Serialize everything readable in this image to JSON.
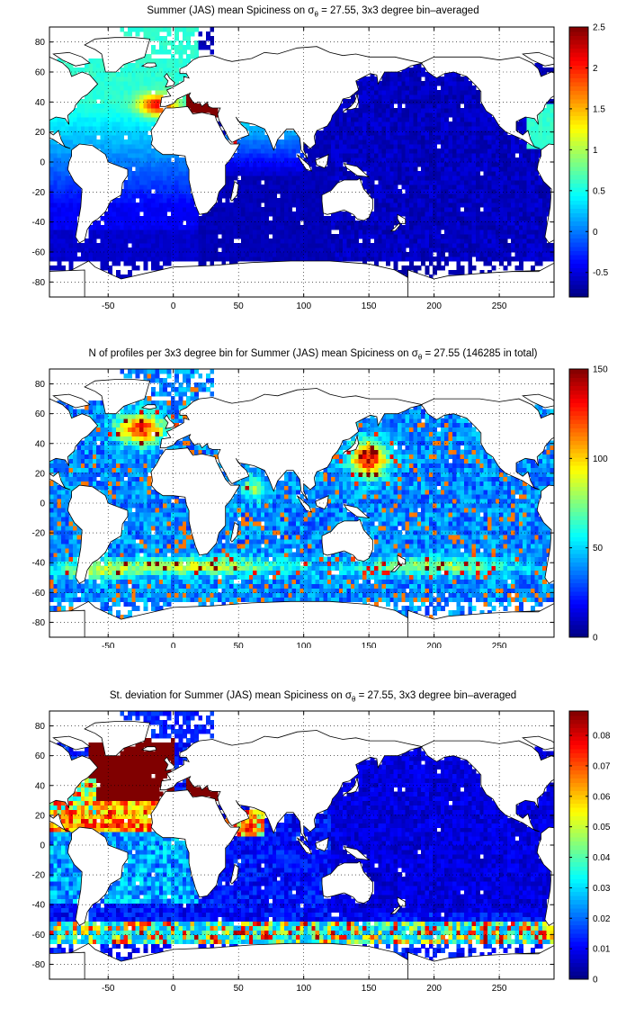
{
  "chart_data": [
    {
      "type": "heatmap",
      "title_pre": "Summer (JAS) mean Spiciness on ",
      "title_sym": "σ",
      "title_sub": "θ",
      "title_post": " = 27.55, 3x3 degree bin–averaged",
      "xlim": [
        -95,
        292
      ],
      "ylim": [
        -90,
        90
      ],
      "xticks": [
        -50,
        0,
        50,
        100,
        150,
        200,
        250
      ],
      "yticks": [
        -80,
        -60,
        -40,
        -20,
        0,
        20,
        40,
        60,
        80
      ],
      "grid": true,
      "colormap": "jet",
      "clim": [
        -0.8,
        2.5
      ],
      "colorbar_ticks": [
        -0.5,
        0,
        0.5,
        1,
        1.5,
        2,
        2.5
      ],
      "colorbar_tick_labels": [
        "-0.5",
        "0",
        "0.5",
        "1",
        "1.5",
        "2",
        "2.5"
      ],
      "field": "spiciness"
    },
    {
      "type": "heatmap",
      "title_pre": "N of profiles per 3x3 degree bin for Summer (JAS) mean Spiciness on ",
      "title_sym": "σ",
      "title_sub": "θ",
      "title_post": " = 27.55 (146285 in total)",
      "xlim": [
        -95,
        292
      ],
      "ylim": [
        -90,
        90
      ],
      "xticks": [
        -50,
        0,
        50,
        100,
        150,
        200,
        250
      ],
      "yticks": [
        -80,
        -60,
        -40,
        -20,
        0,
        20,
        40,
        60,
        80
      ],
      "grid": true,
      "colormap": "jet",
      "clim": [
        0,
        150
      ],
      "colorbar_ticks": [
        0,
        50,
        100,
        150
      ],
      "colorbar_tick_labels": [
        "0",
        "50",
        "100",
        "150"
      ],
      "field": "count"
    },
    {
      "type": "heatmap",
      "title_pre": "St. deviation for Summer (JAS) mean Spiciness on ",
      "title_sym": "σ",
      "title_sub": "θ",
      "title_post": " = 27.55, 3x3 degree bin–averaged",
      "xlim": [
        -95,
        292
      ],
      "ylim": [
        -90,
        90
      ],
      "xticks": [
        -50,
        0,
        50,
        100,
        150,
        200,
        250
      ],
      "yticks": [
        -80,
        -60,
        -40,
        -20,
        0,
        20,
        40,
        60,
        80
      ],
      "grid": true,
      "colormap": "jet",
      "clim": [
        0,
        0.088
      ],
      "colorbar_ticks": [
        0,
        0.01,
        0.02,
        0.03,
        0.04,
        0.05,
        0.06,
        0.07,
        0.08
      ],
      "colorbar_tick_labels": [
        "0",
        "0.01",
        "0.02",
        "0.03",
        "0.04",
        "0.05",
        "0.06",
        "0.07",
        "0.08"
      ],
      "field": "std"
    }
  ]
}
